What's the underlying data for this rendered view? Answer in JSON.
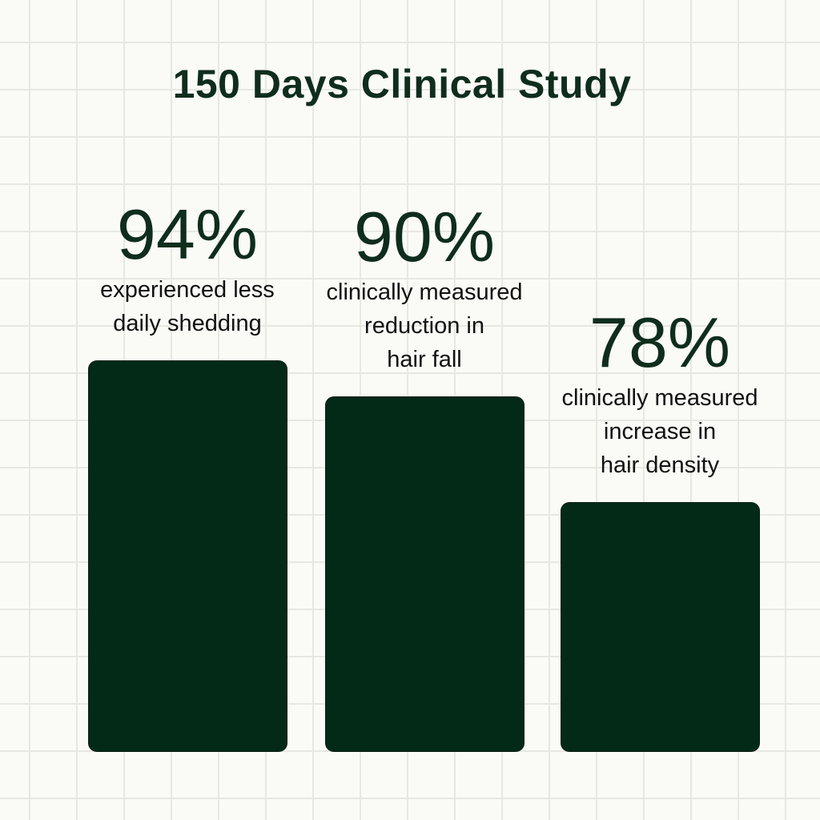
{
  "chart_data": {
    "type": "bar",
    "title": "150 Days Clinical Study",
    "categories": [
      "experienced less\ndaily shedding",
      "clinically measured\nreduction in\nhair fall",
      "clinically measured\nincrease in\nhair density"
    ],
    "values": [
      94,
      90,
      78
    ],
    "data_labels": [
      "94%",
      "90%",
      "78%"
    ],
    "xlabel": "",
    "ylabel": "",
    "ylim": [
      50,
      100
    ],
    "grid": false,
    "bar_color": "#022a17",
    "text_color": "#0f2d1c"
  }
}
